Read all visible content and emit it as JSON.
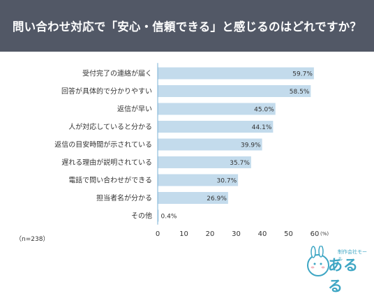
{
  "header": {
    "title": "問い合わせ対応で「安心・信頼できる」と感じるのはどれですか？"
  },
  "footnote": "（n=238）",
  "logo": {
    "name": "あるる",
    "tagline": "制作会社モール"
  },
  "colors": {
    "header_bg": "#525866",
    "bar": "#c3dbec",
    "axis": "#7ab0d6",
    "logo": "#3ea6c4"
  },
  "chart_data": {
    "type": "bar",
    "orientation": "horizontal",
    "title": "",
    "xlabel": "",
    "ylabel": "",
    "unit": "(%)",
    "xlim": [
      0,
      60
    ],
    "xticks": [
      0,
      10,
      20,
      30,
      40,
      50,
      60
    ],
    "grid": false,
    "categories": [
      "受付完了の連絡が届く",
      "回答が具体的で分かりやすい",
      "返信が早い",
      "人が対応していると分かる",
      "返信の目安時間が示されている",
      "遅れる理由が説明されている",
      "電話で問い合わせができる",
      "担当者名が分かる",
      "その他"
    ],
    "values": [
      59.7,
      58.5,
      45.0,
      44.1,
      39.9,
      35.7,
      30.7,
      26.9,
      0.4
    ],
    "value_labels": [
      "59.7%",
      "58.5%",
      "45.0%",
      "44.1%",
      "39.9%",
      "35.7%",
      "30.7%",
      "26.9%",
      "0.4%"
    ]
  }
}
